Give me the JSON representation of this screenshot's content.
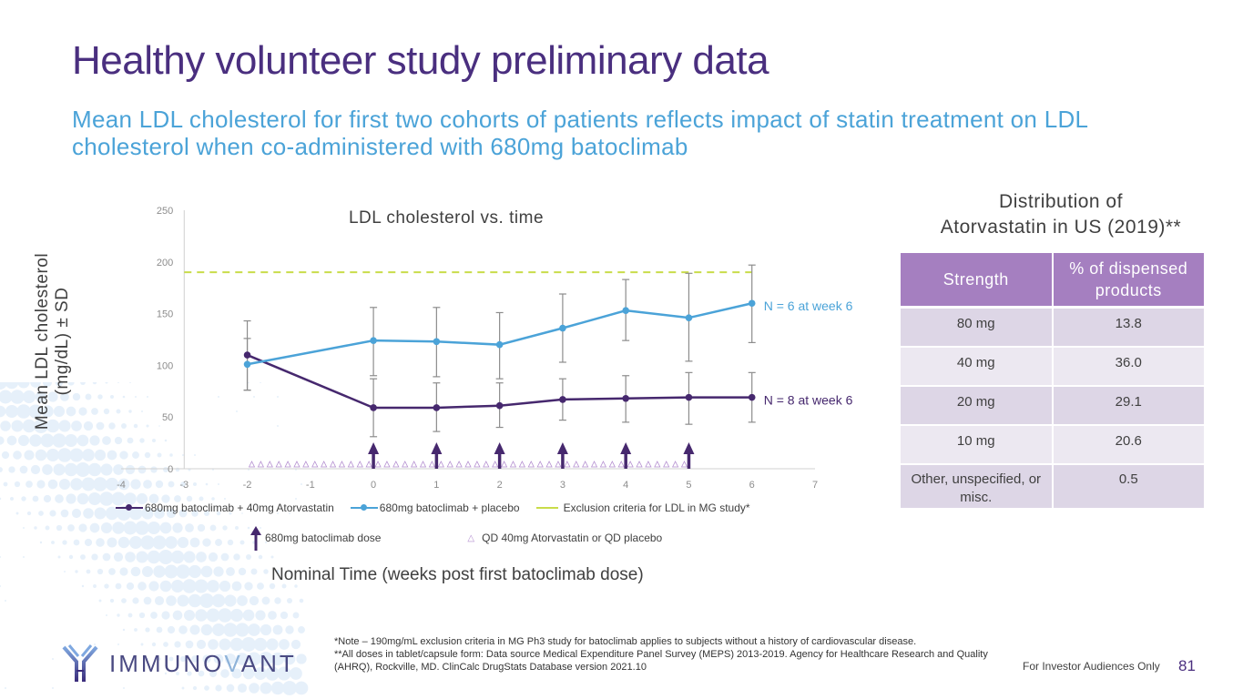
{
  "slide": {
    "title": "Healthy volunteer study preliminary data",
    "subtitle": "Mean LDL cholesterol for first two cohorts of patients reflects impact of statin treatment on LDL cholesterol when co-administered with 680mg batoclimab",
    "page_number": "81",
    "footer_text": "For Investor Audiences Only",
    "logo_text_a": "IMMUNO",
    "logo_text_b": "V",
    "logo_text_c": "ANT",
    "footnotes": [
      "*Note – 190mg/mL exclusion criteria in MG Ph3 study for batoclimab applies to subjects without a history of cardiovascular disease.",
      "**All doses in tablet/capsule form: Data source Medical Expenditure Panel Survey (MEPS) 2013-2019. Agency for Healthcare Research and Quality (AHRQ), Rockville, MD. ClinCalc DrugStats Database version 2021.10"
    ]
  },
  "colors": {
    "title": "#4a2f7f",
    "subtitle": "#4ba3d8",
    "series_atorvastatin": "#46286e",
    "series_placebo": "#4ba3d8",
    "exclusion_line": "#c9dc4a",
    "placebo_marker": "#b48fd0",
    "error_bar": "#8c8c8c",
    "table_header": "#a57fc0"
  },
  "chart_data": {
    "type": "line",
    "title": "LDL cholesterol vs. time",
    "xlabel": "Nominal Time (weeks post first batoclimab dose)",
    "ylabel_line1": "Mean LDL cholesterol",
    "ylabel_line2": "(mg/dL) ± SD",
    "xlim": [
      -4,
      7
    ],
    "ylim": [
      0,
      250
    ],
    "x_ticks": [
      "-4",
      "-3",
      "-2",
      "-1",
      "0",
      "1",
      "2",
      "3",
      "4",
      "5",
      "6",
      "7"
    ],
    "y_ticks": [
      "0",
      "50",
      "100",
      "150",
      "200",
      "250"
    ],
    "grid": false,
    "legend_position": "bottom",
    "x": [
      -2,
      0,
      1,
      2,
      3,
      4,
      5,
      6
    ],
    "series": [
      {
        "name": "680mg batoclimab + 40mg Atorvastatin",
        "key": "atorvastatin",
        "values": [
          110,
          59,
          59,
          61,
          67,
          68,
          69,
          69
        ],
        "sd_low": [
          76,
          31,
          36,
          40,
          47,
          45,
          43,
          45
        ],
        "sd_high": [
          143,
          87,
          83,
          83,
          87,
          90,
          93,
          93
        ],
        "annotation": "N = 8 at week 6"
      },
      {
        "name": "680mg batoclimab + placebo",
        "key": "placebo",
        "values": [
          101,
          124,
          123,
          120,
          136,
          153,
          146,
          160
        ],
        "sd_low": [
          76,
          90,
          89,
          87,
          103,
          124,
          104,
          122
        ],
        "sd_high": [
          126,
          156,
          156,
          151,
          169,
          183,
          189,
          197
        ],
        "annotation": "N = 6 at week 6"
      }
    ],
    "reference_line": {
      "name": "Exclusion criteria for LDL in MG study*",
      "y": 190,
      "x_range": [
        -3,
        6
      ]
    },
    "dose_arrows": {
      "name": "680mg batoclimab dose",
      "x": [
        0,
        1,
        2,
        3,
        4,
        5
      ]
    },
    "daily_markers": {
      "name": "QD 40mg Atorvastatin or QD placebo",
      "x_range": [
        -2,
        5
      ],
      "per_week": 7
    }
  },
  "table": {
    "title_line1": "Distribution of",
    "title_line2": "Atorvastatin in US (2019)**",
    "headers": [
      "Strength",
      "% of dispensed products"
    ],
    "rows": [
      [
        "80 mg",
        "13.8"
      ],
      [
        "40 mg",
        "36.0"
      ],
      [
        "20 mg",
        "29.1"
      ],
      [
        "10 mg",
        "20.6"
      ],
      [
        "Other, unspecified, or misc.",
        "0.5"
      ]
    ]
  }
}
